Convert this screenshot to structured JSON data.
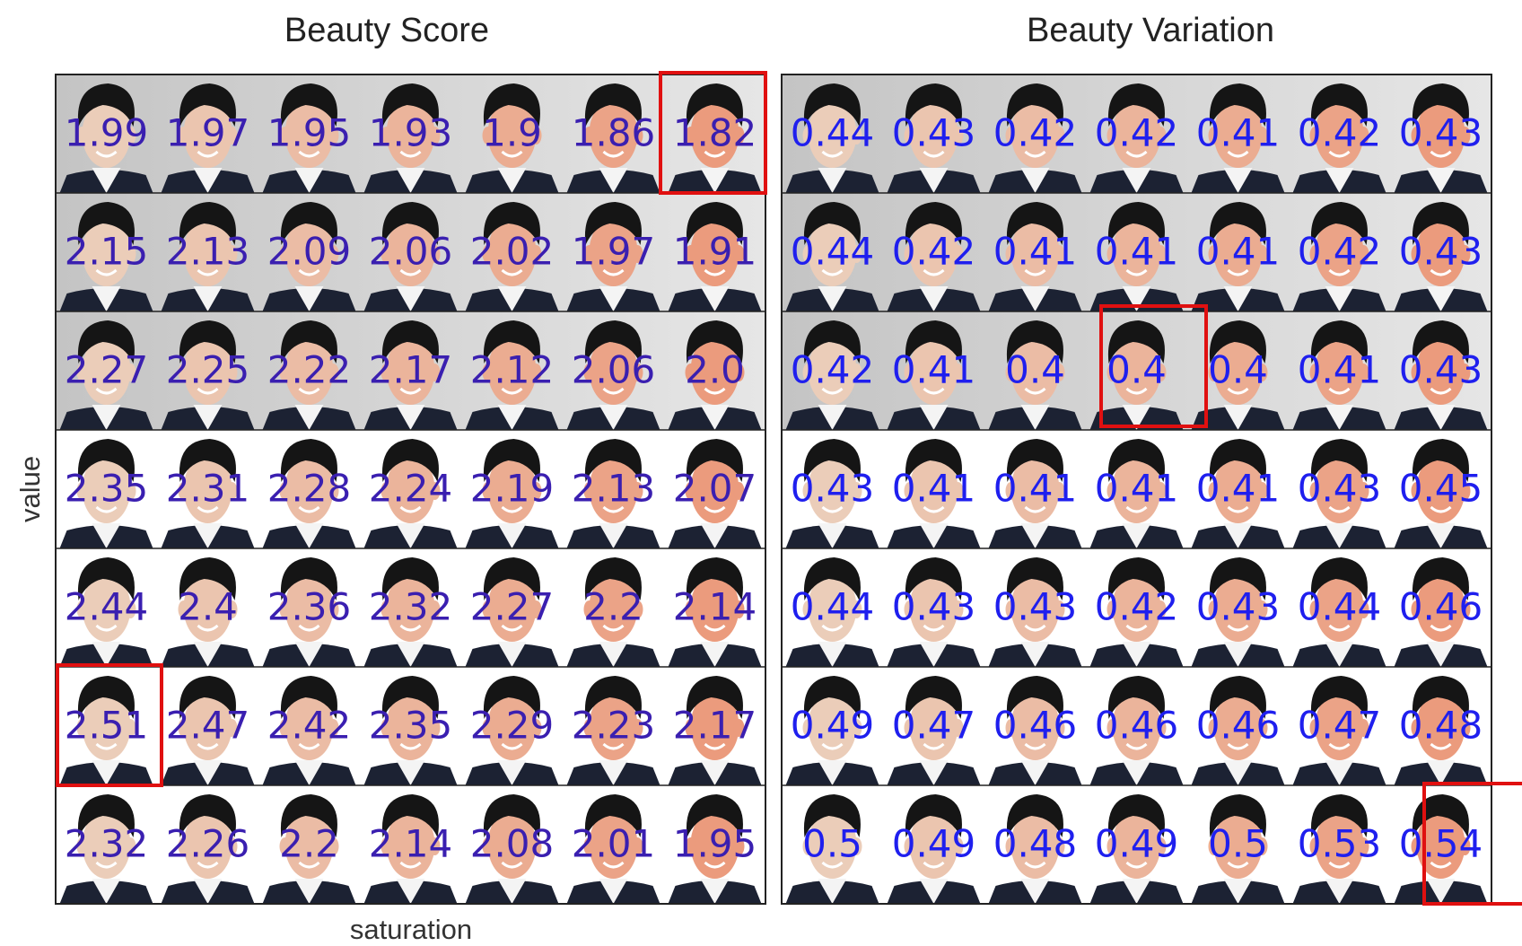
{
  "y_label": "value",
  "x_label": "saturation",
  "panels": [
    {
      "title": "Beauty Score",
      "rows": [
        [
          "1.99",
          "1.97",
          "1.95",
          "1.93",
          "1.9",
          "1.86",
          "1.82"
        ],
        [
          "2.15",
          "2.13",
          "2.09",
          "2.06",
          "2.02",
          "1.97",
          "1.91"
        ],
        [
          "2.27",
          "2.25",
          "2.22",
          "2.17",
          "2.12",
          "2.06",
          "2.0"
        ],
        [
          "2.35",
          "2.31",
          "2.28",
          "2.24",
          "2.19",
          "2.13",
          "2.07"
        ],
        [
          "2.44",
          "2.4",
          "2.36",
          "2.32",
          "2.27",
          "2.2",
          "2.14"
        ],
        [
          "2.51",
          "2.47",
          "2.42",
          "2.35",
          "2.29",
          "2.23",
          "2.17"
        ],
        [
          "2.32",
          "2.26",
          "2.2",
          "2.14",
          "2.08",
          "2.01",
          "1.95"
        ]
      ]
    },
    {
      "title": "Beauty Variation",
      "rows": [
        [
          "0.44",
          "0.43",
          "0.42",
          "0.42",
          "0.41",
          "0.42",
          "0.43"
        ],
        [
          "0.44",
          "0.42",
          "0.41",
          "0.41",
          "0.41",
          "0.42",
          "0.43"
        ],
        [
          "0.42",
          "0.41",
          "0.4",
          "0.4",
          "0.4",
          "0.41",
          "0.43"
        ],
        [
          "0.43",
          "0.41",
          "0.41",
          "0.41",
          "0.41",
          "0.43",
          "0.45"
        ],
        [
          "0.44",
          "0.43",
          "0.43",
          "0.42",
          "0.43",
          "0.44",
          "0.46"
        ],
        [
          "0.49",
          "0.47",
          "0.46",
          "0.46",
          "0.46",
          "0.47",
          "0.48"
        ],
        [
          "0.5",
          "0.49",
          "0.48",
          "0.49",
          "0.5",
          "0.53",
          "0.54"
        ]
      ]
    }
  ]
}
